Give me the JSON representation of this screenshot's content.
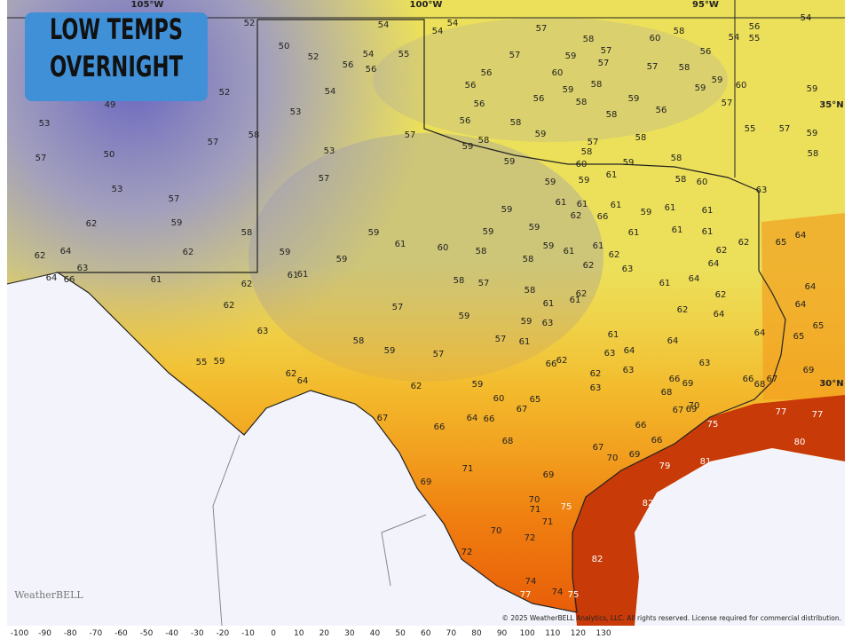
{
  "title_lines": [
    "LOW TEMPS",
    "OVERNIGHT"
  ],
  "longitude_labels": [
    "105°W",
    "100°W",
    "95°W"
  ],
  "latitude_labels": [
    "35°N",
    "30°N"
  ],
  "logo": "WeatherBELL",
  "copyright": "© 2025 WeatherBELL Analytics, LLC. All rights reserved. License required for commercial distribution.",
  "colorbar_ticks": [
    -100,
    -90,
    -80,
    -70,
    -60,
    -50,
    -40,
    -30,
    -20,
    -10,
    0,
    10,
    20,
    30,
    40,
    50,
    60,
    70,
    80,
    90,
    100,
    110,
    120,
    130
  ],
  "stations": [
    52,
    54,
    54,
    54,
    57,
    58,
    60,
    58,
    56,
    54,
    54,
    55,
    50,
    52,
    56,
    54,
    56,
    55,
    57,
    57,
    57,
    56,
    57,
    58,
    56,
    60,
    59,
    58,
    59,
    59,
    59,
    60,
    59,
    52,
    54,
    56,
    56,
    58,
    59,
    57,
    49,
    53,
    53,
    56,
    58,
    56,
    58,
    57,
    57,
    56,
    58,
    59,
    57,
    58,
    55,
    57,
    59,
    57,
    50,
    53,
    58,
    59,
    58,
    59,
    58,
    58,
    59,
    61,
    57,
    60,
    58,
    60,
    63,
    53,
    57,
    59,
    59,
    61,
    61,
    62,
    66,
    61,
    59,
    61,
    61,
    59,
    62,
    59,
    58,
    59,
    61,
    60,
    59,
    59,
    61,
    61,
    61,
    62,
    65,
    64,
    62,
    64,
    62,
    59,
    59,
    58,
    59,
    61,
    61,
    62,
    58,
    62,
    64,
    63,
    64,
    66,
    61,
    62,
    61,
    61,
    62,
    63,
    64,
    64,
    58,
    57,
    58,
    62,
    61,
    61,
    62,
    64,
    62,
    57,
    59,
    61,
    62,
    64,
    63,
    59,
    63,
    61,
    64,
    65,
    65,
    58,
    59,
    57,
    61,
    64,
    64,
    63,
    63,
    55,
    59,
    57,
    66,
    62,
    63,
    62,
    69,
    62,
    64,
    62,
    59,
    63,
    66,
    69,
    66,
    68,
    67,
    68,
    60,
    65,
    67,
    70,
    67,
    69,
    77,
    77,
    67,
    64,
    66,
    66,
    75,
    66,
    68,
    66,
    80,
    67,
    71,
    69,
    79,
    81,
    70,
    69,
    69,
    70,
    71,
    75,
    82,
    71,
    70,
    72,
    72,
    82,
    74,
    74,
    77,
    75
  ]
}
